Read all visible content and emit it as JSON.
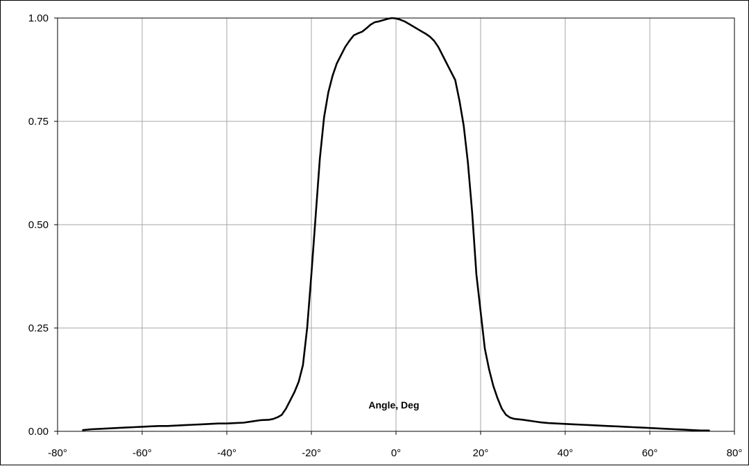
{
  "chart_data": {
    "type": "line",
    "title": "",
    "xlabel": "Angle, Deg",
    "ylabel": "",
    "xlim": [
      -80,
      80
    ],
    "ylim": [
      0,
      1
    ],
    "grid": true,
    "x_ticks": [
      -80,
      -60,
      -40,
      -20,
      0,
      20,
      40,
      60,
      80
    ],
    "x_tick_labels": [
      "-80°",
      "-60°",
      "-40°",
      "-20°",
      "0°",
      "20°",
      "40°",
      "60°",
      "80°"
    ],
    "y_ticks": [
      0,
      0.25,
      0.5,
      0.75,
      1.0
    ],
    "y_tick_labels": [
      "0.00",
      "0.25",
      "0.50",
      "0.75",
      "1.00"
    ],
    "series": [
      {
        "color": "#000000",
        "x": [
          -74,
          -72,
          -70,
          -68,
          -66,
          -64,
          -62,
          -60,
          -58,
          -56,
          -54,
          -52,
          -50,
          -48,
          -46,
          -44,
          -42,
          -40,
          -38,
          -36,
          -34,
          -32,
          -30,
          -29,
          -28,
          -27,
          -26,
          -25,
          -24,
          -23,
          -22,
          -21,
          -20,
          -19,
          -18,
          -17,
          -16,
          -15,
          -14,
          -13,
          -12,
          -11,
          -10,
          -9,
          -8,
          -7,
          -6,
          -5,
          -4,
          -3,
          -2,
          -1,
          0,
          1,
          2,
          3,
          4,
          5,
          6,
          7,
          8,
          9,
          10,
          11,
          12,
          13,
          14,
          15,
          16,
          17,
          18,
          19,
          20,
          21,
          22,
          23,
          24,
          25,
          26,
          27,
          28,
          30,
          32,
          34,
          36,
          38,
          40,
          42,
          44,
          46,
          48,
          50,
          52,
          54,
          56,
          58,
          60,
          62,
          64,
          66,
          68,
          70,
          72,
          74
        ],
        "y": [
          0.003,
          0.005,
          0.006,
          0.007,
          0.008,
          0.009,
          0.01,
          0.011,
          0.012,
          0.013,
          0.013,
          0.014,
          0.015,
          0.016,
          0.017,
          0.018,
          0.019,
          0.019,
          0.02,
          0.021,
          0.024,
          0.027,
          0.028,
          0.03,
          0.034,
          0.04,
          0.055,
          0.075,
          0.095,
          0.12,
          0.16,
          0.25,
          0.38,
          0.52,
          0.66,
          0.76,
          0.82,
          0.86,
          0.89,
          0.91,
          0.93,
          0.945,
          0.958,
          0.963,
          0.967,
          0.975,
          0.984,
          0.99,
          0.992,
          0.995,
          0.998,
          1.0,
          0.999,
          0.996,
          0.992,
          0.986,
          0.98,
          0.974,
          0.968,
          0.962,
          0.955,
          0.945,
          0.93,
          0.91,
          0.89,
          0.87,
          0.85,
          0.8,
          0.74,
          0.65,
          0.53,
          0.38,
          0.29,
          0.2,
          0.15,
          0.11,
          0.08,
          0.055,
          0.04,
          0.033,
          0.03,
          0.028,
          0.025,
          0.022,
          0.02,
          0.019,
          0.018,
          0.017,
          0.016,
          0.015,
          0.014,
          0.013,
          0.012,
          0.011,
          0.01,
          0.009,
          0.008,
          0.007,
          0.006,
          0.005,
          0.004,
          0.003,
          0.002,
          0.002
        ]
      }
    ]
  }
}
